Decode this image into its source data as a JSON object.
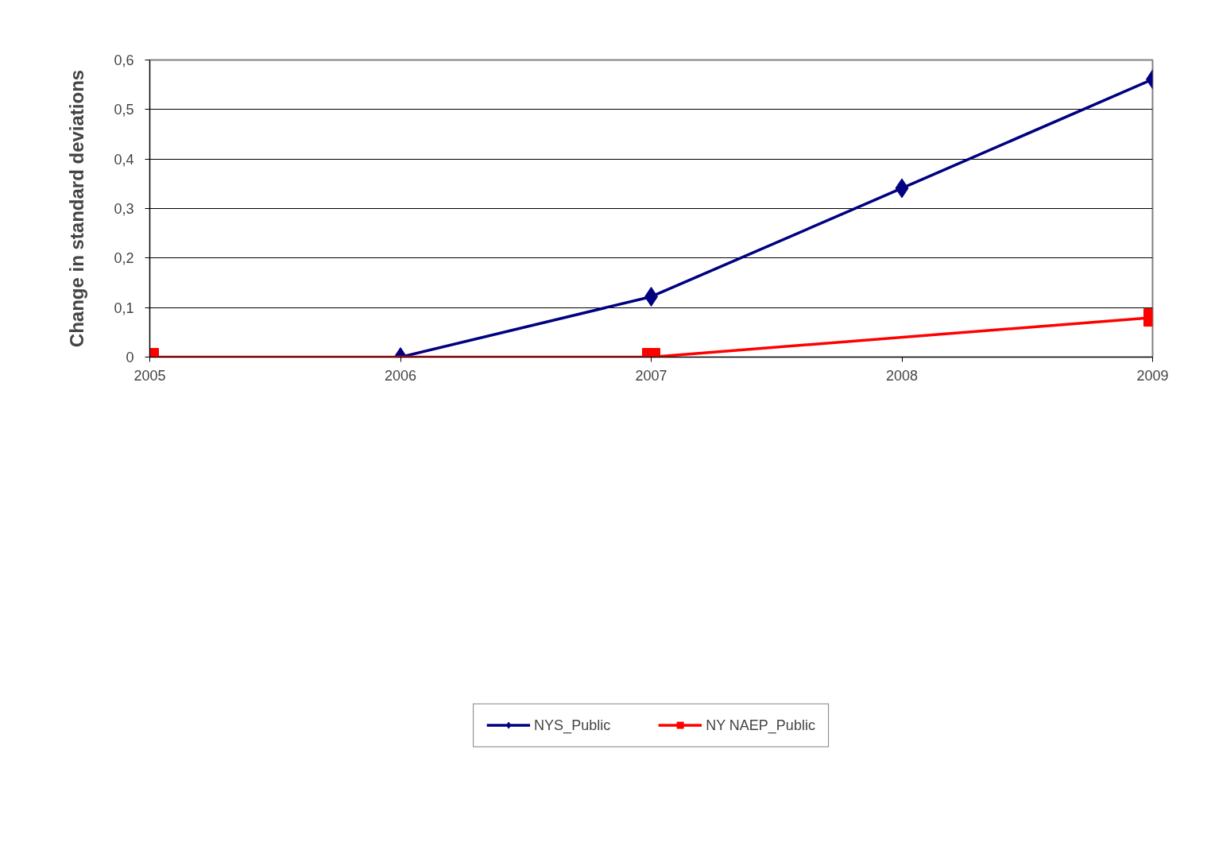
{
  "chart_data": {
    "type": "line",
    "ylabel": "Change in standard deviations",
    "xlim": [
      2005,
      2009
    ],
    "xticks": [
      2005,
      2006,
      2007,
      2008,
      2009
    ],
    "ylim": [
      0,
      0.6
    ],
    "yticks": [
      {
        "value": 0,
        "label": "0"
      },
      {
        "value": 0.1,
        "label": "0,1"
      },
      {
        "value": 0.2,
        "label": "0,2"
      },
      {
        "value": 0.3,
        "label": "0,3"
      },
      {
        "value": 0.4,
        "label": "0,4"
      },
      {
        "value": 0.5,
        "label": "0,5"
      },
      {
        "value": 0.6,
        "label": "0,6"
      }
    ],
    "grid": "y",
    "legend": "bottom",
    "line_style": "solid",
    "series": [
      {
        "name": "NYS_Public",
        "color": "#000080",
        "marker": "diamond",
        "x": [
          2006,
          2007,
          2008,
          2009
        ],
        "values": [
          0,
          0.122,
          0.341,
          0.561
        ]
      },
      {
        "name": "NY NAEP_Public",
        "color": "#ff0000",
        "marker": "square",
        "x": [
          2005,
          2007,
          2009
        ],
        "values": [
          0,
          0,
          0.08
        ]
      }
    ]
  }
}
